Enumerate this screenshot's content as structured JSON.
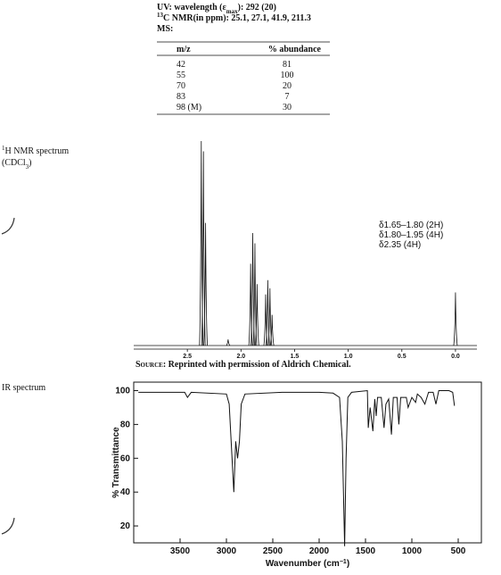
{
  "uv": [
    "UV: wavelength (ε",
    "max",
    "): 292 (20)"
  ],
  "c13_nmr": [
    "13",
    "C NMR(in ppm): 25.1, 27.1, 41.9, 211.3"
  ],
  "ms": {
    "label": "MS:",
    "columns": [
      "m/z",
      "% abundance"
    ],
    "rows": [
      [
        "42",
        81
      ],
      [
        "55",
        100
      ],
      [
        "70",
        20
      ],
      [
        "83",
        7
      ],
      [
        "98 (M)",
        30
      ]
    ]
  },
  "h_nmr_label": [
    "1",
    "H NMR spectrum"
  ],
  "h_nmr_solvent": [
    "(CDCl",
    "3",
    ")"
  ],
  "ir_label": "IR spectrum",
  "chart_data": [
    {
      "type": "spectrum",
      "x": [
        2.37,
        2.35,
        2.33,
        2.12,
        1.91,
        1.89,
        1.87,
        1.85,
        1.77,
        1.75,
        1.73,
        1.71,
        0.0
      ],
      "values": [
        100,
        95,
        60,
        3,
        40,
        55,
        50,
        30,
        25,
        32,
        28,
        15,
        26
      ],
      "xlim": [
        3.0,
        -0.2
      ],
      "xticks": [
        2.5,
        {
          "value": 2,
          "label": "2.0"
        },
        1.5,
        {
          "value": 1,
          "label": "1.0"
        },
        0.5,
        {
          "value": 0,
          "label": "0.0"
        }
      ],
      "annotations": [
        "δ1.65–1.80 (2H)",
        "δ1.80–1.95 (4H)",
        "δ2.35 (4H)"
      ],
      "source": [
        "Source:",
        " Reprinted with permission of Aldrich Chemical."
      ]
    },
    {
      "type": "line",
      "x": [
        3950,
        3450,
        3420,
        3380,
        3000,
        2970,
        2920,
        2900,
        2880,
        2860,
        2840,
        2800,
        2400,
        2000,
        1850,
        1780,
        1750,
        1725,
        1710,
        1690,
        1650,
        1480,
        1470,
        1450,
        1420,
        1400,
        1385,
        1370,
        1330,
        1300,
        1280,
        1250,
        1220,
        1200,
        1160,
        1140,
        1120,
        1060,
        1040,
        1000,
        960,
        940,
        900,
        860,
        820,
        770,
        740,
        710,
        600,
        560,
        540
      ],
      "values": [
        99,
        99,
        96,
        99,
        98,
        92,
        40,
        70,
        60,
        70,
        92,
        98,
        99,
        99,
        98.5,
        96,
        70,
        8,
        60,
        96,
        99,
        100,
        78,
        90,
        76,
        95,
        85,
        96,
        96,
        78,
        92,
        95,
        74,
        96,
        96,
        80,
        96,
        96,
        90,
        96,
        93,
        98,
        96,
        92,
        99,
        99,
        92,
        100,
        100,
        99,
        91
      ],
      "xlim": [
        4000,
        250
      ],
      "ylim": [
        10,
        105
      ],
      "xticks": [
        3500,
        3000,
        2500,
        2000,
        1500,
        1000,
        500
      ],
      "yticks": [
        20,
        40,
        60,
        80,
        100
      ],
      "ylabel": "% Transmittance",
      "xlabel": [
        "Wavenumber (cm",
        "−1",
        ")"
      ]
    }
  ]
}
